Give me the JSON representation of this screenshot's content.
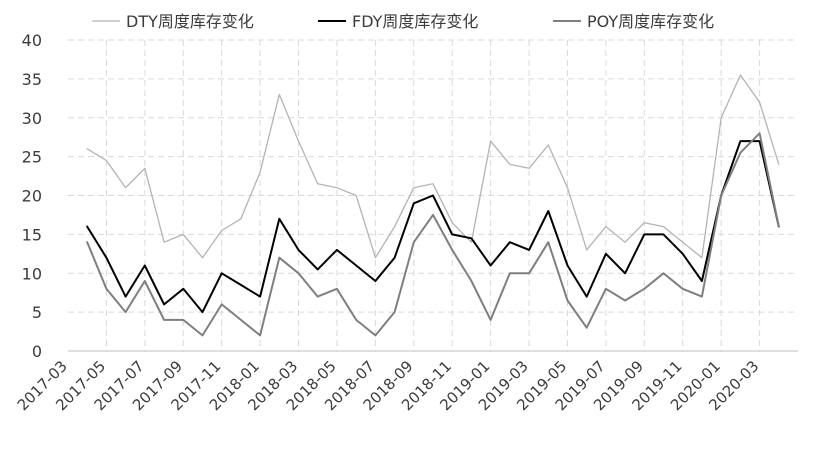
{
  "chart_data": {
    "type": "line",
    "title": "",
    "xlabel": "",
    "ylabel": "",
    "ylim": [
      0,
      40
    ],
    "yticks": [
      0,
      5,
      10,
      15,
      20,
      25,
      30,
      35,
      40
    ],
    "grid": true,
    "legend": "top",
    "xlim": [
      "2017-03",
      "2020-05"
    ],
    "x_tick_labels": [
      "2017-03",
      "2017-05",
      "2017-07",
      "2017-09",
      "2017-11",
      "2018-01",
      "2018-03",
      "2018-05",
      "2018-07",
      "2018-09",
      "2018-11",
      "2019-01",
      "2019-03",
      "2019-05",
      "2019-07",
      "2019-09",
      "2019-11",
      "2020-01",
      "2020-03"
    ],
    "x": [
      "2017-04",
      "2017-05",
      "2017-06",
      "2017-07",
      "2017-08",
      "2017-09",
      "2017-10",
      "2017-11",
      "2017-12",
      "2018-01",
      "2018-02",
      "2018-03",
      "2018-04",
      "2018-05",
      "2018-06",
      "2018-07",
      "2018-08",
      "2018-09",
      "2018-10",
      "2018-11",
      "2018-12",
      "2019-01",
      "2019-02",
      "2019-03",
      "2019-04",
      "2019-05",
      "2019-06",
      "2019-07",
      "2019-08",
      "2019-09",
      "2019-10",
      "2019-11",
      "2019-12",
      "2020-01",
      "2020-02",
      "2020-03",
      "2020-04"
    ],
    "series": [
      {
        "name": "DTY周度库存变化",
        "color": "#b4b4b4",
        "width": 1.3,
        "values": [
          26,
          24.5,
          21,
          23.5,
          14,
          15,
          12,
          15.5,
          17,
          23,
          33,
          27,
          21.5,
          21,
          20,
          12,
          16,
          21,
          21.5,
          16.5,
          14,
          27,
          24,
          23.5,
          26.5,
          21,
          13,
          16,
          14,
          16.5,
          16,
          14,
          12,
          30,
          35.5,
          32,
          24
        ]
      },
      {
        "name": "FDY周度库存变化",
        "color": "#000000",
        "width": 2,
        "values": [
          16,
          12,
          7,
          11,
          6,
          8,
          5,
          10,
          8.5,
          7,
          17,
          13,
          10.5,
          13,
          11,
          9,
          12,
          19,
          20,
          15,
          14.5,
          11,
          14,
          13,
          18,
          11,
          7,
          12.5,
          10,
          15,
          15,
          12.5,
          9,
          20,
          27,
          27,
          16
        ]
      },
      {
        "name": "POY周度库存变化",
        "color": "#7f7f7f",
        "width": 2,
        "values": [
          14,
          8,
          5,
          9,
          4,
          4,
          2,
          6,
          4,
          2,
          12,
          10,
          7,
          8,
          4,
          2,
          5,
          14,
          17.5,
          13,
          9,
          4,
          10,
          10,
          14,
          6.5,
          3,
          8,
          6.5,
          8,
          10,
          8,
          7,
          20,
          25.5,
          28,
          16
        ]
      }
    ]
  }
}
